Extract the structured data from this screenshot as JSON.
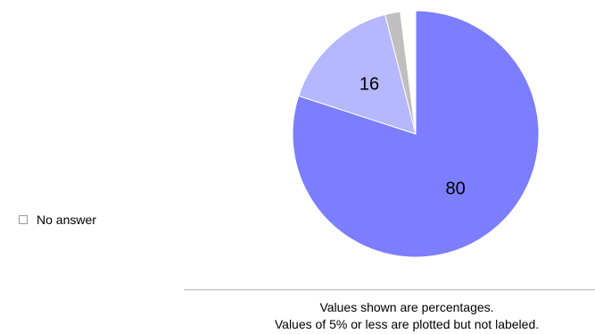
{
  "chart_data": {
    "type": "pie",
    "title": "",
    "start_angle_deg": 0,
    "direction": "clockwise",
    "label_threshold_percent": 5,
    "slices": [
      {
        "value": 80,
        "label": "80",
        "color": "#7b7eff"
      },
      {
        "value": 16,
        "label": "16",
        "color": "#b5b7ff"
      },
      {
        "value": 2,
        "label": "",
        "color": "#bfbfbf"
      },
      {
        "value": 2,
        "label": "",
        "color": "#ffffff",
        "name": "No answer"
      }
    ],
    "legend": [
      {
        "label": "No answer",
        "color": "#ffffff"
      }
    ],
    "legend_placement": "left",
    "notes": [
      "Values shown are percentages.",
      "Values of 5% or less are plotted but not labeled."
    ]
  }
}
